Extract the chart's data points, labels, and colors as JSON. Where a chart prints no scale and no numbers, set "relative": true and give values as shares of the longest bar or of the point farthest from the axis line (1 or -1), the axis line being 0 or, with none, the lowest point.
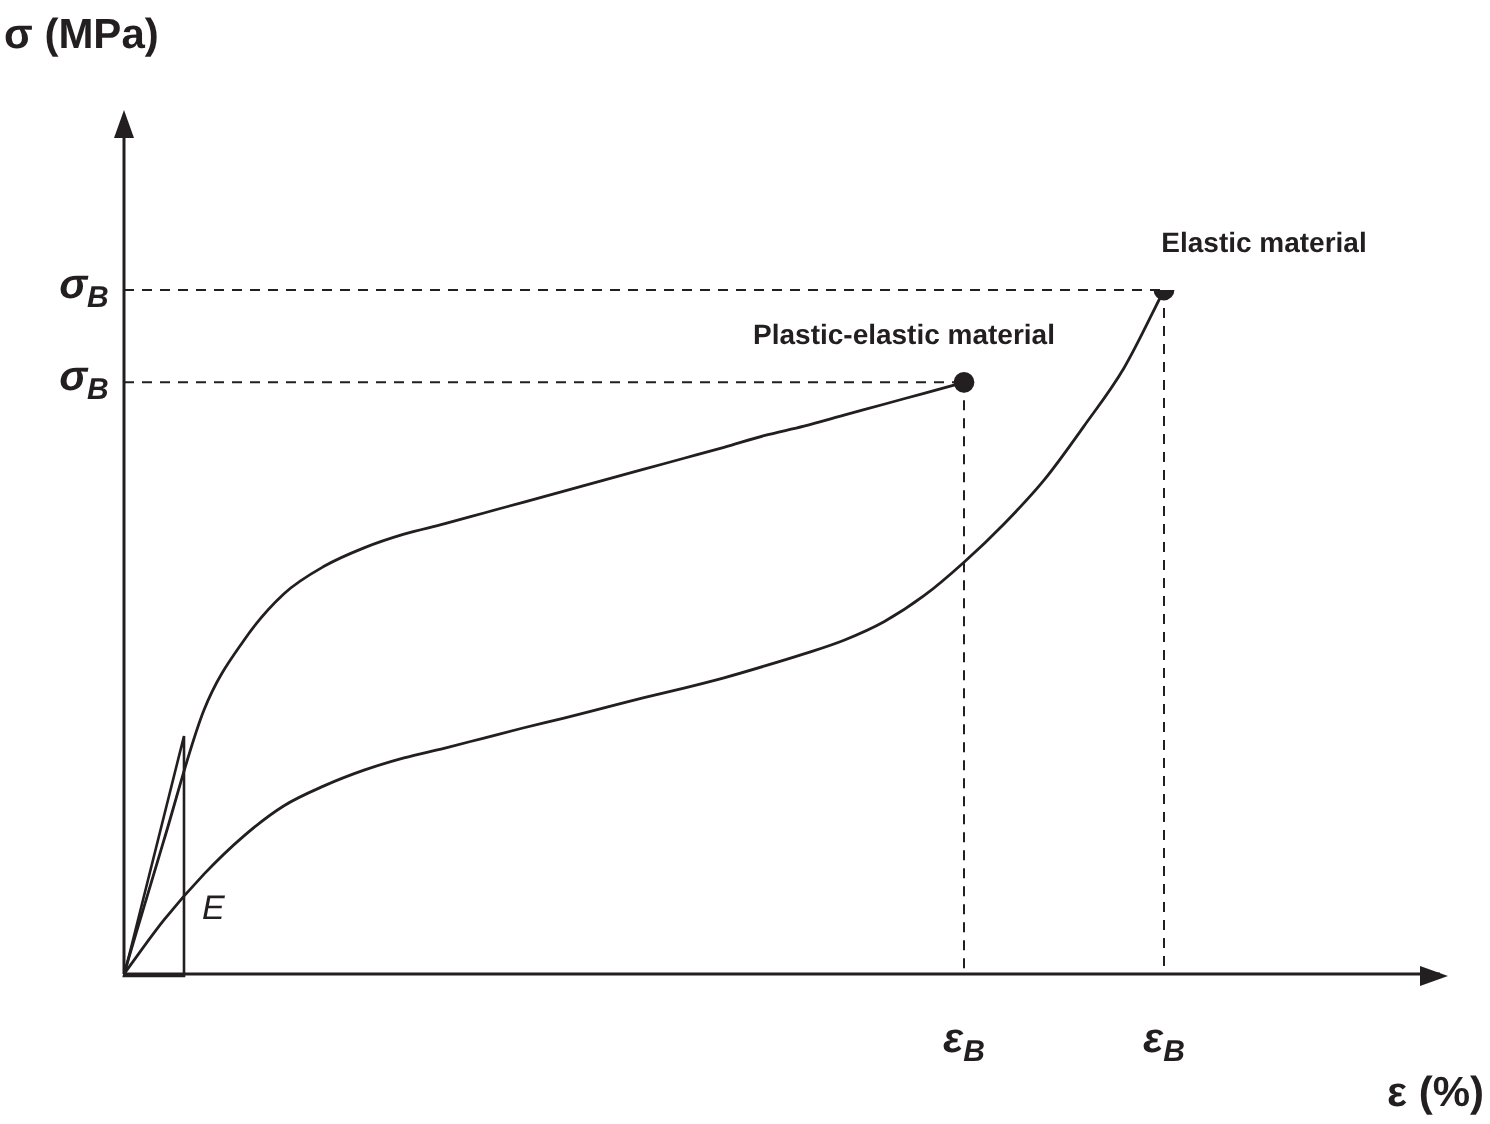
{
  "chart_data": {
    "type": "line",
    "relative": true,
    "categories": [
      null,
      null,
      null,
      null,
      null,
      null,
      null,
      null,
      null,
      null,
      null,
      null,
      null,
      null,
      null,
      null,
      null,
      null,
      null,
      null,
      null,
      null,
      null,
      null,
      null,
      null,
      null
    ],
    "series": [
      {
        "name": "Plastic-elastic material",
        "color": "#231f20",
        "values": [
          0,
          0.196,
          0.386,
          0.488,
          0.556,
          0.596,
          0.623,
          0.643,
          0.658,
          0.674,
          0.69,
          0.706,
          0.722,
          0.738,
          0.754,
          0.77,
          0.787,
          0.801,
          0.817,
          0.833,
          0.849,
          0.865,
          null,
          null,
          null,
          null,
          null
        ]
      },
      {
        "name": "Elastic material",
        "color": "#231f20",
        "values": [
          0,
          0.079,
          0.146,
          0.202,
          0.246,
          0.275,
          0.298,
          0.316,
          0.33,
          0.345,
          0.36,
          0.374,
          0.389,
          0.404,
          0.418,
          0.433,
          0.45,
          0.468,
          0.488,
          0.515,
          0.553,
          0.602,
          0.658,
          0.722,
          0.801,
          0.886,
          1
        ]
      }
    ],
    "annotations": [
      "E",
      "σ$_{B}$",
      "σ$_{B}$",
      "ε$_{B}$",
      "ε$_{B}$",
      "σ (MPa)",
      "ε (%)"
    ]
  }
}
